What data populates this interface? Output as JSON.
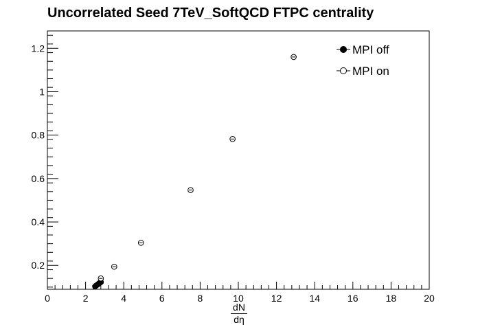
{
  "chart_data": {
    "type": "scatter",
    "title": "Uncorrelated Seed 7TeV_SoftQCD FTPC centrality",
    "xlabel_num": "dN",
    "xlabel_den": "dη",
    "ylabel": "",
    "xlim": [
      0,
      20
    ],
    "ylim": [
      0.09,
      1.28
    ],
    "xticks": [
      0,
      2,
      4,
      6,
      8,
      10,
      12,
      14,
      16,
      18,
      20
    ],
    "xtick_labels": [
      "0",
      "2",
      "4",
      "6",
      "8",
      "10",
      "12",
      "14",
      "16",
      "18",
      "20"
    ],
    "yticks": [
      0.2,
      0.4,
      0.6,
      0.8,
      1.0,
      1.2
    ],
    "ytick_labels": [
      "0.2",
      "0.4",
      "0.6",
      "0.8",
      "1",
      "1.2"
    ],
    "grid": false,
    "legend_position": "top-right",
    "series": [
      {
        "name": "MPI off",
        "marker": "filled-circle",
        "color": "#000000",
        "x": [
          2.5,
          2.55,
          2.6,
          2.65,
          2.7,
          2.75,
          2.8
        ],
        "y": [
          0.103,
          0.107,
          0.11,
          0.113,
          0.117,
          0.12,
          0.123
        ]
      },
      {
        "name": "MPI on",
        "marker": "open-circle",
        "color": "#000000",
        "x": [
          2.8,
          3.5,
          4.9,
          7.5,
          9.7,
          12.9
        ],
        "y": [
          0.14,
          0.194,
          0.304,
          0.547,
          0.782,
          1.16
        ]
      }
    ]
  }
}
